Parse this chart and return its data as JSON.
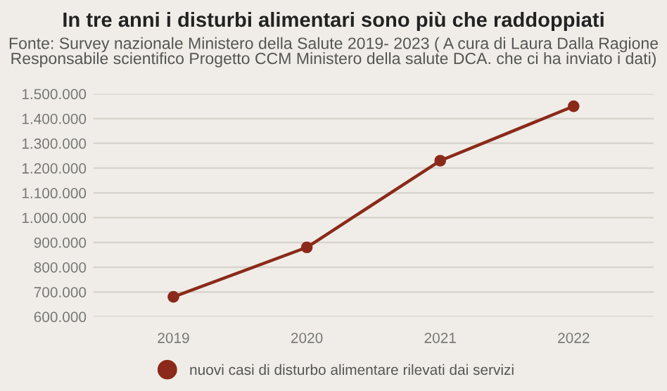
{
  "chart_data": {
    "type": "line",
    "title": "In tre anni i disturbi alimentari sono più che raddoppiati",
    "subtitle": "Fonte: Survey nazionale Ministero della Salute 2019- 2023 ( A cura di Laura Dalla Ragione Responsabile scientifico Progetto CCM Ministero della salute DCA. che ci ha inviato i dati)",
    "categories": [
      "2019",
      "2020",
      "2021",
      "2022"
    ],
    "series": [
      {
        "name": "nuovi casi di disturbo alimentare rilevati dai servizi",
        "color": "#8b2a1a",
        "values": [
          680000,
          880000,
          1230000,
          1450000
        ]
      }
    ],
    "ylim": [
      600000,
      1500000
    ],
    "yticks": [
      {
        "value": 600000,
        "label": "600.000"
      },
      {
        "value": 700000,
        "label": "700.000"
      },
      {
        "value": 800000,
        "label": "800.000"
      },
      {
        "value": 900000,
        "label": "900.000"
      },
      {
        "value": 1000000,
        "label": "1.000.000"
      },
      {
        "value": 1100000,
        "label": "1.100.000"
      },
      {
        "value": 1200000,
        "label": "1.200.000"
      },
      {
        "value": 1300000,
        "label": "1.300.000"
      },
      {
        "value": 1400000,
        "label": "1.400.000"
      },
      {
        "value": 1500000,
        "label": "1.500.000"
      }
    ],
    "grid": "y",
    "legend": "bottom",
    "marker": "circle",
    "line_style": "solid"
  }
}
